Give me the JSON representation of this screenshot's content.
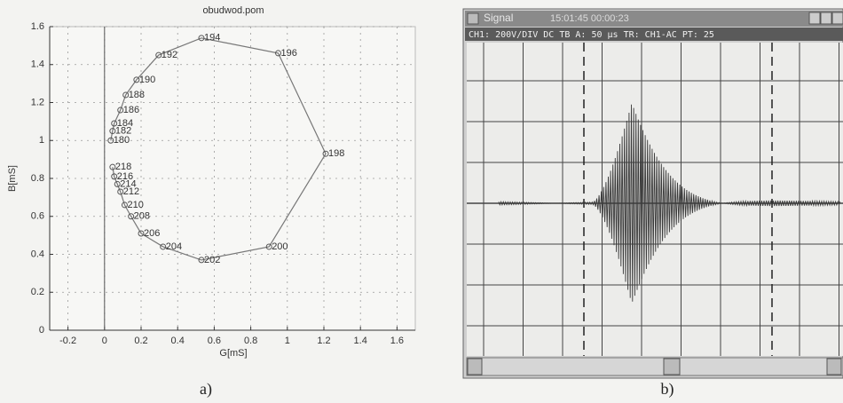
{
  "chart_data": {
    "type": "line",
    "title": "obudwod.pom",
    "x_label": "G[mS]",
    "y_label": "B[mS]",
    "x": [
      0.034,
      0.044,
      0.053,
      0.087,
      0.116,
      0.175,
      0.296,
      0.53,
      0.95,
      1.21,
      0.9,
      0.53,
      0.32,
      0.2,
      0.145,
      0.11,
      0.087,
      0.07,
      0.053,
      0.044
    ],
    "values": [
      1.0,
      1.05,
      1.09,
      1.16,
      1.24,
      1.32,
      1.45,
      1.54,
      1.46,
      0.93,
      0.44,
      0.37,
      0.44,
      0.51,
      0.6,
      0.66,
      0.73,
      0.77,
      0.81,
      0.86
    ],
    "point_labels": [
      "180",
      "182",
      "184",
      "186",
      "188",
      "190",
      "192",
      "194",
      "196",
      "198",
      "200",
      "202",
      "204",
      "206",
      "208",
      "210",
      "212",
      "214",
      "216",
      "218"
    ],
    "color": "#777777",
    "xlim": [
      -0.3,
      1.7
    ],
    "xticks": [
      -0.2,
      0,
      0.2,
      0.4,
      0.6,
      0.8,
      1,
      1.2,
      1.4,
      1.6
    ],
    "ylim": [
      0,
      1.6
    ],
    "yticks": [
      0,
      0.2,
      0.4,
      0.6,
      0.8,
      1,
      1.2,
      1.4,
      1.6
    ],
    "grid": true
  },
  "captions": [
    "a)",
    "b)"
  ],
  "scope_window": {
    "title": "Signal",
    "timestamp": "15:01:45  00:00:23",
    "status": "CH1: 200V/DIV DC   TB A: 50 µs   TR: CH1-AC   PT: 25"
  }
}
